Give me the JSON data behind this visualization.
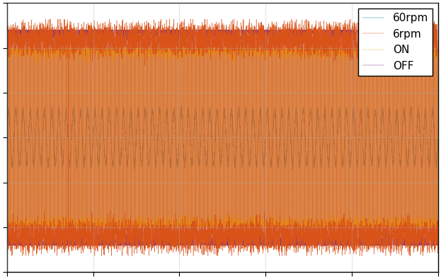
{
  "title": "",
  "xlabel": "",
  "ylabel": "",
  "legend_labels": [
    "60rpm",
    "6rpm",
    "ON",
    "OFF"
  ],
  "colors": [
    "#0072BD",
    "#D95319",
    "#EDB120",
    "#7E2F8E"
  ],
  "figsize": [
    6.23,
    3.94
  ],
  "dpi": 100,
  "background_color": "#FFFFFF",
  "n_points": 20000,
  "seed": 42,
  "ylim": [
    -1.5,
    1.5
  ],
  "linewidth": 0.3,
  "off_amp": 1.2,
  "on_amp": 1.0,
  "rpm6_amp": 1.1,
  "rpm60_amp": 0.3
}
